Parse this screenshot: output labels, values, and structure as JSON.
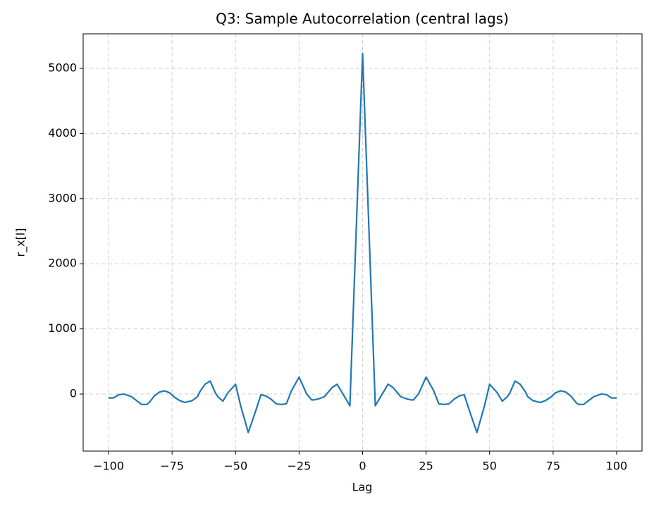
{
  "chart_data": {
    "type": "line",
    "title": "Q3: Sample Autocorrelation (central lags)",
    "x_label": "Lag",
    "y_label": "r_x[l]",
    "x": [
      -100,
      -98,
      -96,
      -94,
      -91,
      -89,
      -87,
      -85,
      -84,
      -82,
      -80,
      -78,
      -76,
      -74,
      -72,
      -70,
      -67,
      -65,
      -64,
      -62,
      -60,
      -58,
      -57,
      -55,
      -53,
      -50,
      -48,
      -45,
      -42,
      -40,
      -38,
      -36,
      -34,
      -32,
      -30,
      -28,
      -25,
      -22,
      -20,
      -19,
      -17,
      -15,
      -12,
      -10,
      -5,
      0,
      5,
      10,
      12,
      15,
      17,
      19,
      20,
      22,
      25,
      28,
      30,
      32,
      34,
      36,
      38,
      40,
      42,
      45,
      48,
      50,
      53,
      55,
      57,
      58,
      60,
      62,
      64,
      65,
      67,
      70,
      72,
      74,
      76,
      78,
      80,
      82,
      84,
      85,
      87,
      89,
      91,
      94,
      96,
      98,
      100
    ],
    "series": [
      {
        "color": "#1f77b4",
        "values": [
          -60,
          -60,
          -10,
          0,
          -40,
          -100,
          -160,
          -160,
          -130,
          -30,
          30,
          50,
          20,
          -50,
          -100,
          -130,
          -100,
          -40,
          40,
          150,
          200,
          20,
          -40,
          -110,
          20,
          150,
          -180,
          -590,
          -250,
          -10,
          -30,
          -80,
          -150,
          -160,
          -150,
          50,
          260,
          0,
          -90,
          -90,
          -70,
          -40,
          100,
          150,
          -180,
          5230,
          -180,
          150,
          100,
          -40,
          -70,
          -90,
          -90,
          0,
          260,
          50,
          -150,
          -160,
          -150,
          -80,
          -30,
          -10,
          -250,
          -590,
          -180,
          150,
          20,
          -110,
          -40,
          20,
          200,
          150,
          40,
          -40,
          -100,
          -130,
          -100,
          -50,
          20,
          50,
          30,
          -30,
          -130,
          -160,
          -160,
          -100,
          -40,
          0,
          -10,
          -60,
          -60
        ]
      }
    ],
    "xlim": [
      -110,
      110
    ],
    "ylim": [
      -876,
      5530
    ],
    "xticks": [
      {
        "value": -100,
        "label": "−100"
      },
      {
        "value": -75,
        "label": "−75"
      },
      {
        "value": -50,
        "label": "−50"
      },
      {
        "value": -25,
        "label": "−25"
      },
      0,
      25,
      50,
      75,
      100
    ],
    "yticks": [
      0,
      1000,
      2000,
      3000,
      4000,
      5000
    ],
    "grid": true
  }
}
